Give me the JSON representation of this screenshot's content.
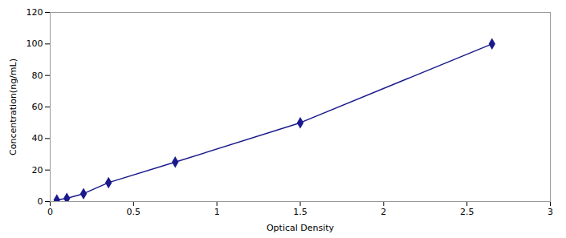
{
  "chart_data": {
    "type": "line",
    "x": [
      0.04,
      0.1,
      0.2,
      0.35,
      0.75,
      1.5,
      2.65
    ],
    "values": [
      1,
      2,
      5,
      12,
      25,
      50,
      100
    ],
    "color": "#1a1a8c",
    "marker": "diamond",
    "xlabel": "Optical Density",
    "ylabel": "Concentration(ng/mL)",
    "xlim": [
      0,
      3
    ],
    "ylim": [
      0,
      120
    ],
    "xticks": [
      0,
      0.5,
      1,
      1.5,
      2,
      2.5,
      3
    ],
    "yticks": [
      0,
      20,
      40,
      60,
      80,
      100,
      120
    ],
    "grid": false
  }
}
